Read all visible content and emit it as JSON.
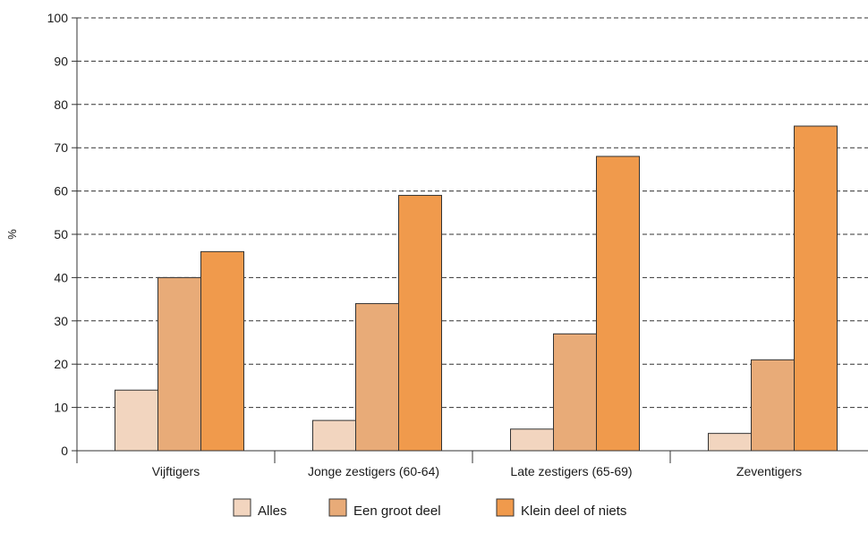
{
  "chart_data": {
    "type": "bar",
    "title": "",
    "xlabel": "",
    "ylabel": "%",
    "ylim": [
      0,
      100
    ],
    "yticks": [
      0,
      10,
      20,
      30,
      40,
      50,
      60,
      70,
      80,
      90,
      100
    ],
    "grid": true,
    "legend_position": "bottom",
    "categories": [
      "Vijftigers",
      "Jonge zestigers (60-64)",
      "Late zestigers (65-69)",
      "Zeventigers"
    ],
    "series": [
      {
        "name": "Alles",
        "color": "#f2d5bf",
        "values": [
          14,
          7,
          5,
          4
        ]
      },
      {
        "name": "Een groot deel",
        "color": "#e8ab78",
        "values": [
          40,
          34,
          27,
          21
        ]
      },
      {
        "name": "Klein deel of niets",
        "color": "#f09a4c",
        "values": [
          46,
          59,
          68,
          75
        ]
      }
    ]
  }
}
